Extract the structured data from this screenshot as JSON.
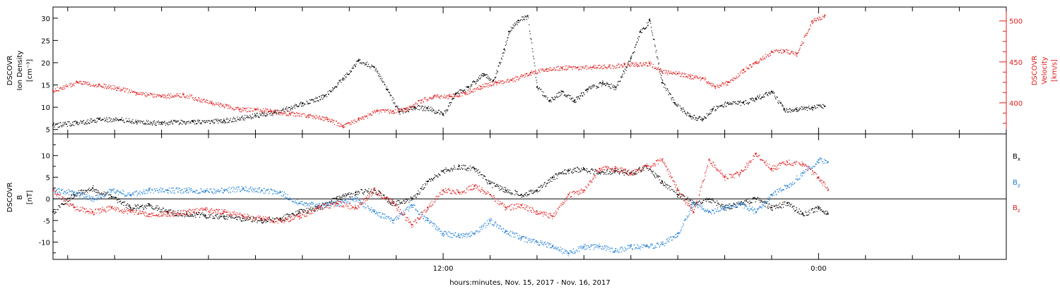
{
  "figure": {
    "xlabel": "hours:minutes, Nov. 15, 2017 - Nov. 16, 2017",
    "x_ticks": [
      {
        "hour": 12,
        "label": "12:00"
      },
      {
        "hour": 24,
        "label": "0:00"
      }
    ],
    "x_range_hours": [
      -0.47,
      30.0
    ],
    "minor_tick_every_hours": 1.5
  },
  "colors": {
    "black": "#000000",
    "red": "#e01b1b",
    "blue": "#1f7fd6"
  },
  "chart_data": [
    {
      "type": "scatter",
      "panel": "top",
      "left_axis": {
        "label_lines": [
          "DSCOVR",
          "Ion Density",
          "[cm⁻³]"
        ],
        "ticks": [
          5,
          10,
          15,
          20,
          25,
          30
        ],
        "ylim": [
          4,
          32.5
        ]
      },
      "right_axis": {
        "label_lines": [
          "DSCOVR",
          "Velocity",
          "[km/s]"
        ],
        "ticks": [
          400,
          450,
          500
        ],
        "ylim": [
          362,
          517
        ]
      },
      "series": [
        {
          "name": "Ion Density",
          "axis": "left",
          "color": "black",
          "x_hours": [
            -0.47,
            0.3,
            1.0,
            1.7,
            2.2,
            3.0,
            4.0,
            5.0,
            6.0,
            6.6,
            7.5,
            8.2,
            8.8,
            9.3,
            9.8,
            10.2,
            10.6,
            11.1,
            11.5,
            12.0,
            12.4,
            12.8,
            13.3,
            13.6,
            13.95,
            14.1,
            14.4,
            14.7,
            15.0,
            15.4,
            15.8,
            16.2,
            16.6,
            17.1,
            17.5,
            18.0,
            18.3,
            18.6,
            19.0,
            19.4,
            19.9,
            20.3,
            20.6,
            21.1,
            21.6,
            22.0,
            22.5,
            22.9,
            23.3,
            23.8,
            24.2
          ],
          "y": [
            6.0,
            6.5,
            7.3,
            7.2,
            6.7,
            6.5,
            6.8,
            7.0,
            8.2,
            8.8,
            10.8,
            12.5,
            16.5,
            20.5,
            19.0,
            14.0,
            9.0,
            10.0,
            9.8,
            8.5,
            13.0,
            14.5,
            17.5,
            16.0,
            23.0,
            27.0,
            29.5,
            30.5,
            14.5,
            11.5,
            13.5,
            11.5,
            14.0,
            15.5,
            14.5,
            21.0,
            27.0,
            29.5,
            15.5,
            11.0,
            8.0,
            7.3,
            9.5,
            11.0,
            11.0,
            12.0,
            13.5,
            9.5,
            9.5,
            10.0,
            10.2
          ]
        },
        {
          "name": "Velocity",
          "axis": "right",
          "color": "red",
          "x_hours": [
            -0.47,
            0.3,
            1.0,
            1.6,
            2.2,
            3.0,
            3.7,
            4.6,
            5.5,
            6.0,
            6.5,
            7.1,
            7.7,
            8.3,
            8.8,
            9.3,
            9.9,
            10.4,
            10.8,
            11.3,
            11.7,
            12.2,
            12.7,
            13.2,
            13.7,
            14.2,
            14.8,
            15.3,
            15.8,
            16.3,
            16.8,
            17.3,
            17.8,
            18.2,
            18.6,
            19.0,
            19.5,
            19.9,
            20.3,
            20.7,
            21.1,
            21.6,
            22.0,
            22.5,
            22.9,
            23.3,
            23.8,
            24.2
          ],
          "y": [
            415,
            425,
            422,
            418,
            412,
            408,
            410,
            400,
            392,
            392,
            390,
            387,
            385,
            380,
            372,
            380,
            390,
            390,
            392,
            403,
            408,
            408,
            412,
            420,
            425,
            428,
            437,
            441,
            443,
            443,
            444,
            444,
            447,
            447,
            448,
            438,
            436,
            432,
            430,
            420,
            425,
            440,
            450,
            462,
            464,
            460,
            500,
            507
          ]
        }
      ]
    },
    {
      "type": "scatter",
      "panel": "bottom",
      "left_axis": {
        "label_lines": [
          "DSCOVR",
          "B",
          "[nT]"
        ],
        "ticks": [
          -10,
          -5,
          0,
          5,
          10
        ],
        "ylim": [
          -14,
          15
        ]
      },
      "zero_line": true,
      "legend": [
        {
          "main": "B",
          "sub": "x",
          "color": "black"
        },
        {
          "main": "B",
          "sub": "y",
          "color": "blue"
        },
        {
          "main": "B",
          "sub": "z",
          "color": "red"
        }
      ],
      "series": [
        {
          "name": "Bx",
          "color": "black",
          "x_hours": [
            -0.47,
            0.2,
            0.8,
            1.4,
            2.0,
            2.6,
            3.2,
            3.8,
            4.4,
            5.0,
            5.6,
            6.2,
            6.8,
            7.4,
            8.0,
            8.6,
            9.2,
            9.8,
            10.4,
            11.0,
            11.5,
            12.0,
            12.5,
            13.0,
            13.5,
            14.0,
            14.5,
            15.0,
            15.5,
            16.0,
            16.5,
            17.0,
            17.5,
            18.0,
            18.5,
            19.0,
            19.5,
            20.0,
            20.5,
            21.0,
            21.5,
            22.0,
            22.5,
            23.0,
            23.5,
            24.0,
            24.3
          ],
          "y": [
            -3.0,
            1.0,
            2.5,
            0.5,
            -2.0,
            -1.5,
            -3.0,
            -3.5,
            -3.8,
            -4.0,
            -4.5,
            -5.0,
            -4.5,
            -3.0,
            -2.0,
            0.0,
            1.5,
            2.0,
            -1.0,
            0.0,
            4.0,
            6.5,
            7.5,
            7.0,
            3.5,
            2.0,
            1.0,
            2.0,
            5.0,
            6.5,
            7.0,
            6.0,
            6.5,
            6.0,
            7.5,
            4.0,
            1.0,
            -1.0,
            0.0,
            -2.0,
            -1.0,
            0.0,
            -2.0,
            -1.0,
            -3.5,
            -2.0,
            -3.5
          ]
        },
        {
          "name": "By",
          "color": "blue",
          "x_hours": [
            -0.47,
            0.2,
            0.8,
            1.4,
            2.0,
            2.6,
            3.2,
            3.8,
            4.4,
            5.0,
            5.6,
            6.2,
            6.8,
            7.4,
            8.0,
            8.6,
            9.2,
            9.8,
            10.4,
            11.0,
            11.5,
            12.0,
            12.5,
            13.0,
            13.5,
            14.0,
            14.5,
            15.0,
            15.5,
            16.0,
            16.5,
            17.0,
            17.5,
            18.0,
            18.5,
            19.0,
            19.5,
            20.0,
            20.5,
            21.0,
            21.5,
            22.0,
            22.5,
            23.0,
            23.5,
            24.0,
            24.3
          ],
          "y": [
            2.0,
            1.5,
            0.0,
            2.0,
            1.0,
            2.0,
            2.0,
            2.0,
            1.8,
            2.0,
            2.5,
            2.0,
            1.5,
            -1.0,
            -1.5,
            -1.0,
            0.0,
            -3.0,
            -5.0,
            -1.5,
            -5.0,
            -8.0,
            -8.5,
            -8.0,
            -5.0,
            -7.5,
            -9.0,
            -10.0,
            -11.0,
            -12.5,
            -11.0,
            -11.0,
            -12.0,
            -11.0,
            -11.0,
            -10.5,
            -8.0,
            -1.0,
            -3.0,
            -2.0,
            -1.0,
            -3.0,
            1.0,
            3.0,
            6.0,
            9.0,
            8.5
          ]
        },
        {
          "name": "Bz",
          "color": "red",
          "x_hours": [
            -0.47,
            0.2,
            0.8,
            1.4,
            2.0,
            2.6,
            3.2,
            3.8,
            4.4,
            5.0,
            5.6,
            6.2,
            6.8,
            7.4,
            8.0,
            8.6,
            9.2,
            9.8,
            10.4,
            11.0,
            11.5,
            12.0,
            12.5,
            13.0,
            13.5,
            14.0,
            14.5,
            15.0,
            15.5,
            16.0,
            16.5,
            17.0,
            17.5,
            18.0,
            18.5,
            19.0,
            19.5,
            20.0,
            20.5,
            21.0,
            21.5,
            22.0,
            22.5,
            23.0,
            23.5,
            24.0,
            24.3
          ],
          "y": [
            2.0,
            -2.0,
            -3.0,
            -2.0,
            -3.0,
            -3.5,
            -3.5,
            -3.0,
            -2.5,
            -3.0,
            -4.0,
            -4.5,
            -5.0,
            -4.0,
            -2.0,
            -1.0,
            -2.0,
            2.0,
            -1.0,
            -6.0,
            -2.0,
            2.0,
            1.5,
            3.0,
            1.0,
            -2.0,
            -1.5,
            -3.0,
            -4.0,
            1.0,
            2.0,
            7.0,
            7.0,
            6.0,
            7.5,
            9.0,
            2.0,
            -3.0,
            9.0,
            5.0,
            6.0,
            10.5,
            7.0,
            8.5,
            8.0,
            5.0,
            2.0
          ]
        }
      ]
    }
  ]
}
